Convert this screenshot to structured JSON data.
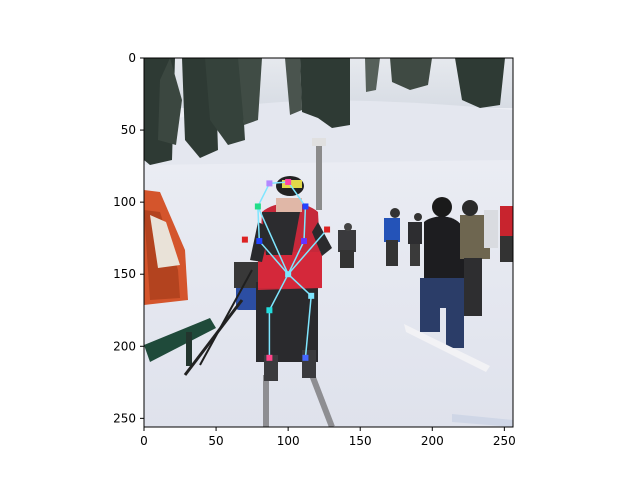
{
  "figure": {
    "x_ticks": [
      "0",
      "50",
      "100",
      "150",
      "200",
      "250"
    ],
    "y_ticks": [
      "0",
      "50",
      "100",
      "150",
      "200",
      "250"
    ],
    "x_range": [
      0,
      256
    ],
    "y_range": [
      0,
      256
    ],
    "y_axis_inverted": true
  },
  "photo": {
    "subject": "skier in red jacket on a snowy ski slope with other skiers, pine trees and an orange shelter"
  },
  "pose_keypoints": {
    "skeleton_color": "#7fe6ff",
    "points": [
      {
        "name": "head-top",
        "x": 100,
        "y": 86,
        "color": "#ff44aa"
      },
      {
        "name": "head-left",
        "x": 87,
        "y": 87,
        "color": "#b388ff"
      },
      {
        "name": "left-shoulder",
        "x": 79,
        "y": 103,
        "color": "#22dd88"
      },
      {
        "name": "right-shoulder",
        "x": 112,
        "y": 103,
        "color": "#2244ff"
      },
      {
        "name": "left-elbow",
        "x": 80,
        "y": 127,
        "color": "#2244ff"
      },
      {
        "name": "right-elbow",
        "x": 111,
        "y": 127,
        "color": "#6633ff"
      },
      {
        "name": "left-hand",
        "x": 70,
        "y": 126,
        "color": "#dd2222"
      },
      {
        "name": "right-hand",
        "x": 127,
        "y": 119,
        "color": "#dd2222"
      },
      {
        "name": "pelvis",
        "x": 100,
        "y": 150,
        "color": "#7fe6ff"
      },
      {
        "name": "left-knee",
        "x": 87,
        "y": 175,
        "color": "#22dddd"
      },
      {
        "name": "right-knee",
        "x": 116,
        "y": 165,
        "color": "#7fe6ff"
      },
      {
        "name": "left-ankle",
        "x": 87,
        "y": 208,
        "color": "#ff4488"
      },
      {
        "name": "right-ankle",
        "x": 112,
        "y": 208,
        "color": "#4466ff"
      }
    ],
    "edges": [
      [
        "head-top",
        "head-left"
      ],
      [
        "head-left",
        "left-shoulder"
      ],
      [
        "head-top",
        "right-shoulder"
      ],
      [
        "left-shoulder",
        "left-elbow"
      ],
      [
        "right-shoulder",
        "right-elbow"
      ],
      [
        "left-elbow",
        "pelvis"
      ],
      [
        "right-elbow",
        "pelvis"
      ],
      [
        "pelvis",
        "right-hand"
      ],
      [
        "left-shoulder",
        "pelvis"
      ],
      [
        "pelvis",
        "left-knee"
      ],
      [
        "left-knee",
        "left-ankle"
      ],
      [
        "pelvis",
        "right-knee"
      ],
      [
        "right-knee",
        "right-ankle"
      ]
    ]
  }
}
